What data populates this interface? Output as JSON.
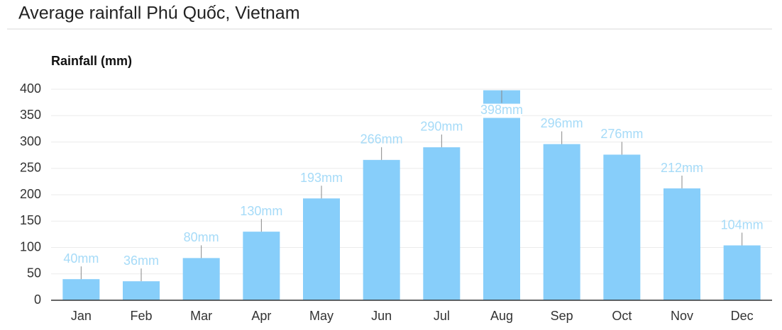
{
  "chart_data": {
    "type": "bar",
    "title": "Average rainfall Phú Quốc, Vietnam",
    "y_label": "Rainfall (mm)",
    "categories": [
      "Jan",
      "Feb",
      "Mar",
      "Apr",
      "May",
      "Jun",
      "Jul",
      "Aug",
      "Sep",
      "Oct",
      "Nov",
      "Dec"
    ],
    "values": [
      40,
      36,
      80,
      130,
      193,
      266,
      290,
      398,
      296,
      276,
      212,
      104
    ],
    "value_labels": [
      "40mm",
      "36mm",
      "80mm",
      "130mm",
      "193mm",
      "266mm",
      "290mm",
      "398mm",
      "296mm",
      "276mm",
      "212mm",
      "104mm"
    ],
    "color": "#87cefa",
    "ylim": [
      0,
      400
    ],
    "yticks": [
      0,
      50,
      100,
      150,
      200,
      250,
      300,
      350,
      400
    ],
    "grid": true
  }
}
